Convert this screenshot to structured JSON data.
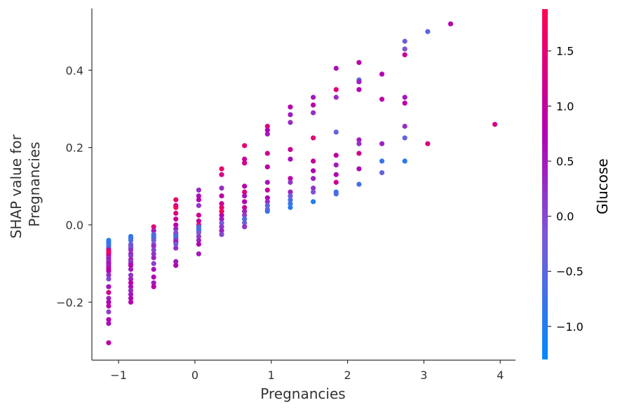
{
  "chart_data": {
    "type": "scatter",
    "title": "",
    "xlabel": "Pregnancies",
    "ylabel": "SHAP value for\nPregnancies",
    "xlim": [
      -1.35,
      4.2
    ],
    "ylim": [
      -0.35,
      0.56
    ],
    "xticks": [
      -1,
      0,
      1,
      2,
      3,
      4
    ],
    "xtick_labels": [
      "−1",
      "0",
      "1",
      "2",
      "3",
      "4"
    ],
    "yticks": [
      -0.2,
      0.0,
      0.2,
      0.4
    ],
    "ytick_labels": [
      "−0.2",
      "0.0",
      "0.2",
      "0.4"
    ],
    "grid": false,
    "colorbar": {
      "label": "Glucose",
      "range": [
        -1.3,
        1.88
      ],
      "ticks": [
        -1.0,
        -0.5,
        0.0,
        0.5,
        1.0,
        1.5
      ],
      "tick_labels": [
        "−1.0",
        "−0.5",
        "0.0",
        "0.5",
        "1.0",
        "1.5"
      ],
      "colors": [
        "#008bfb",
        "#7b59d6",
        "#b300b3",
        "#ff0052"
      ]
    },
    "points": [
      {
        "x": -1.13,
        "y": -0.04,
        "c": -1.0
      },
      {
        "x": -1.13,
        "y": -0.045,
        "c": -0.8
      },
      {
        "x": -1.13,
        "y": -0.05,
        "c": -0.9
      },
      {
        "x": -1.13,
        "y": -0.055,
        "c": -0.6
      },
      {
        "x": -1.13,
        "y": -0.06,
        "c": -0.7
      },
      {
        "x": -1.13,
        "y": -0.065,
        "c": 1.3
      },
      {
        "x": -1.13,
        "y": -0.07,
        "c": 1.6
      },
      {
        "x": -1.13,
        "y": -0.075,
        "c": 1.8
      },
      {
        "x": -1.13,
        "y": -0.08,
        "c": 0.9
      },
      {
        "x": -1.13,
        "y": -0.085,
        "c": 0.3
      },
      {
        "x": -1.13,
        "y": -0.09,
        "c": 0.6
      },
      {
        "x": -1.13,
        "y": -0.095,
        "c": 0.2
      },
      {
        "x": -1.13,
        "y": -0.1,
        "c": 0.8
      },
      {
        "x": -1.13,
        "y": -0.105,
        "c": 0.4
      },
      {
        "x": -1.13,
        "y": -0.11,
        "c": 0.5
      },
      {
        "x": -1.13,
        "y": -0.115,
        "c": 1.0
      },
      {
        "x": -1.13,
        "y": -0.12,
        "c": 0.7
      },
      {
        "x": -1.13,
        "y": -0.13,
        "c": 0.3
      },
      {
        "x": -1.13,
        "y": -0.14,
        "c": 0.0
      },
      {
        "x": -1.13,
        "y": -0.16,
        "c": 0.6
      },
      {
        "x": -1.13,
        "y": -0.175,
        "c": 1.2
      },
      {
        "x": -1.13,
        "y": -0.19,
        "c": 0.4
      },
      {
        "x": -1.13,
        "y": -0.2,
        "c": 0.7
      },
      {
        "x": -1.13,
        "y": -0.21,
        "c": 0.9
      },
      {
        "x": -1.13,
        "y": -0.225,
        "c": 0.1
      },
      {
        "x": -1.13,
        "y": -0.245,
        "c": 0.8
      },
      {
        "x": -1.13,
        "y": -0.255,
        "c": 0.6
      },
      {
        "x": -1.13,
        "y": -0.305,
        "c": 0.9
      },
      {
        "x": -0.84,
        "y": -0.03,
        "c": -0.9
      },
      {
        "x": -0.84,
        "y": -0.035,
        "c": -0.8
      },
      {
        "x": -0.84,
        "y": -0.04,
        "c": -0.6
      },
      {
        "x": -0.84,
        "y": -0.05,
        "c": -0.5
      },
      {
        "x": -0.84,
        "y": -0.055,
        "c": 0.0
      },
      {
        "x": -0.84,
        "y": -0.06,
        "c": -0.3
      },
      {
        "x": -0.84,
        "y": -0.065,
        "c": 0.2
      },
      {
        "x": -0.84,
        "y": -0.075,
        "c": 0.4
      },
      {
        "x": -0.84,
        "y": -0.08,
        "c": 0.1
      },
      {
        "x": -0.84,
        "y": -0.09,
        "c": 0.6
      },
      {
        "x": -0.84,
        "y": -0.095,
        "c": 0.0
      },
      {
        "x": -0.84,
        "y": -0.1,
        "c": 0.3
      },
      {
        "x": -0.84,
        "y": -0.105,
        "c": 0.8
      },
      {
        "x": -0.84,
        "y": -0.115,
        "c": 0.5
      },
      {
        "x": -0.84,
        "y": -0.13,
        "c": 0.2
      },
      {
        "x": -0.84,
        "y": -0.14,
        "c": 0.4
      },
      {
        "x": -0.84,
        "y": -0.15,
        "c": 0.9
      },
      {
        "x": -0.84,
        "y": -0.16,
        "c": 0.6
      },
      {
        "x": -0.84,
        "y": -0.17,
        "c": 0.3
      },
      {
        "x": -0.84,
        "y": -0.18,
        "c": 0.5
      },
      {
        "x": -0.84,
        "y": -0.19,
        "c": 0.7
      },
      {
        "x": -0.84,
        "y": -0.2,
        "c": 0.8
      },
      {
        "x": -0.54,
        "y": -0.005,
        "c": 1.5
      },
      {
        "x": -0.54,
        "y": -0.015,
        "c": 0.5
      },
      {
        "x": -0.54,
        "y": -0.025,
        "c": -0.5
      },
      {
        "x": -0.54,
        "y": -0.03,
        "c": -0.6
      },
      {
        "x": -0.54,
        "y": -0.035,
        "c": -0.7
      },
      {
        "x": -0.54,
        "y": -0.04,
        "c": -0.3
      },
      {
        "x": -0.54,
        "y": -0.05,
        "c": -0.2
      },
      {
        "x": -0.54,
        "y": -0.055,
        "c": 0.3
      },
      {
        "x": -0.54,
        "y": -0.065,
        "c": 0.0
      },
      {
        "x": -0.54,
        "y": -0.075,
        "c": 0.2
      },
      {
        "x": -0.54,
        "y": -0.085,
        "c": 0.4
      },
      {
        "x": -0.54,
        "y": -0.1,
        "c": 0.1
      },
      {
        "x": -0.54,
        "y": -0.115,
        "c": 0.6
      },
      {
        "x": -0.54,
        "y": -0.135,
        "c": 0.8
      },
      {
        "x": -0.54,
        "y": -0.15,
        "c": 0.5
      },
      {
        "x": -0.54,
        "y": -0.16,
        "c": 0.9
      },
      {
        "x": -0.25,
        "y": 0.065,
        "c": 1.6
      },
      {
        "x": -0.25,
        "y": 0.05,
        "c": 1.0
      },
      {
        "x": -0.25,
        "y": 0.045,
        "c": 1.8
      },
      {
        "x": -0.25,
        "y": 0.03,
        "c": 1.4
      },
      {
        "x": -0.25,
        "y": 0.015,
        "c": 1.1
      },
      {
        "x": -0.25,
        "y": 0.0,
        "c": 0.9
      },
      {
        "x": -0.25,
        "y": -0.01,
        "c": 0.4
      },
      {
        "x": -0.25,
        "y": -0.02,
        "c": -0.2
      },
      {
        "x": -0.25,
        "y": -0.025,
        "c": 0.0
      },
      {
        "x": -0.25,
        "y": -0.03,
        "c": -0.8
      },
      {
        "x": -0.25,
        "y": -0.035,
        "c": -0.5
      },
      {
        "x": -0.25,
        "y": -0.04,
        "c": 0.2
      },
      {
        "x": -0.25,
        "y": -0.045,
        "c": 0.6
      },
      {
        "x": -0.25,
        "y": -0.05,
        "c": -0.3
      },
      {
        "x": -0.25,
        "y": -0.06,
        "c": 0.3
      },
      {
        "x": -0.25,
        "y": -0.095,
        "c": 0.5
      },
      {
        "x": -0.25,
        "y": -0.105,
        "c": 0.7
      },
      {
        "x": 0.05,
        "y": 0.09,
        "c": 0.3
      },
      {
        "x": 0.05,
        "y": 0.075,
        "c": 0.6
      },
      {
        "x": 0.05,
        "y": 0.065,
        "c": 0.8
      },
      {
        "x": 0.05,
        "y": 0.05,
        "c": 0.2
      },
      {
        "x": 0.05,
        "y": 0.025,
        "c": 1.2
      },
      {
        "x": 0.05,
        "y": 0.01,
        "c": 0.9
      },
      {
        "x": 0.05,
        "y": 0.0,
        "c": 1.6
      },
      {
        "x": 0.05,
        "y": -0.005,
        "c": -0.7
      },
      {
        "x": 0.05,
        "y": -0.01,
        "c": -0.5
      },
      {
        "x": 0.05,
        "y": -0.015,
        "c": -0.8
      },
      {
        "x": 0.05,
        "y": -0.02,
        "c": -0.2
      },
      {
        "x": 0.05,
        "y": -0.03,
        "c": 0.1
      },
      {
        "x": 0.05,
        "y": -0.04,
        "c": 0.4
      },
      {
        "x": 0.05,
        "y": -0.05,
        "c": 0.7
      },
      {
        "x": 0.05,
        "y": -0.075,
        "c": 0.5
      },
      {
        "x": 0.35,
        "y": 0.145,
        "c": 1.6
      },
      {
        "x": 0.35,
        "y": 0.13,
        "c": 1.3
      },
      {
        "x": 0.35,
        "y": 0.095,
        "c": 0.3
      },
      {
        "x": 0.35,
        "y": 0.075,
        "c": 0.9
      },
      {
        "x": 0.35,
        "y": 0.055,
        "c": 1.1
      },
      {
        "x": 0.35,
        "y": 0.045,
        "c": 1.5
      },
      {
        "x": 0.35,
        "y": 0.035,
        "c": 1.8
      },
      {
        "x": 0.35,
        "y": 0.025,
        "c": 0.8
      },
      {
        "x": 0.35,
        "y": 0.015,
        "c": 0.5
      },
      {
        "x": 0.35,
        "y": 0.005,
        "c": -0.2
      },
      {
        "x": 0.35,
        "y": -0.005,
        "c": 0.2
      },
      {
        "x": 0.35,
        "y": -0.015,
        "c": 0.4
      },
      {
        "x": 0.35,
        "y": -0.025,
        "c": 0.0
      },
      {
        "x": 0.65,
        "y": 0.205,
        "c": 1.5
      },
      {
        "x": 0.65,
        "y": 0.17,
        "c": 1.0
      },
      {
        "x": 0.65,
        "y": 0.16,
        "c": 1.2
      },
      {
        "x": 0.65,
        "y": 0.1,
        "c": 0.9
      },
      {
        "x": 0.65,
        "y": 0.085,
        "c": 1.4
      },
      {
        "x": 0.65,
        "y": 0.075,
        "c": 0.6
      },
      {
        "x": 0.65,
        "y": 0.06,
        "c": 0.8
      },
      {
        "x": 0.65,
        "y": 0.045,
        "c": 1.1
      },
      {
        "x": 0.65,
        "y": 0.035,
        "c": 0.4
      },
      {
        "x": 0.65,
        "y": 0.025,
        "c": 0.1
      },
      {
        "x": 0.65,
        "y": 0.015,
        "c": -0.6
      },
      {
        "x": 0.65,
        "y": 0.005,
        "c": -0.3
      },
      {
        "x": 0.65,
        "y": -0.005,
        "c": 0.2
      },
      {
        "x": 0.95,
        "y": 0.255,
        "c": 1.4
      },
      {
        "x": 0.95,
        "y": 0.245,
        "c": 0.8
      },
      {
        "x": 0.95,
        "y": 0.235,
        "c": 0.5
      },
      {
        "x": 0.95,
        "y": 0.185,
        "c": 1.2
      },
      {
        "x": 0.95,
        "y": 0.15,
        "c": 0.9
      },
      {
        "x": 0.95,
        "y": 0.11,
        "c": 0.6
      },
      {
        "x": 0.95,
        "y": 0.09,
        "c": 1.1
      },
      {
        "x": 0.95,
        "y": 0.07,
        "c": 0.7
      },
      {
        "x": 0.95,
        "y": 0.06,
        "c": 0.3
      },
      {
        "x": 0.95,
        "y": 0.05,
        "c": -0.5
      },
      {
        "x": 0.95,
        "y": 0.04,
        "c": -0.2
      },
      {
        "x": 0.95,
        "y": 0.035,
        "c": -0.7
      },
      {
        "x": 1.25,
        "y": 0.305,
        "c": 0.8
      },
      {
        "x": 1.25,
        "y": 0.285,
        "c": 0.5
      },
      {
        "x": 1.25,
        "y": 0.265,
        "c": 0.3
      },
      {
        "x": 1.25,
        "y": 0.195,
        "c": 1.1
      },
      {
        "x": 1.25,
        "y": 0.17,
        "c": 0.6
      },
      {
        "x": 1.25,
        "y": 0.12,
        "c": 0.9
      },
      {
        "x": 1.25,
        "y": 0.11,
        "c": 0.2
      },
      {
        "x": 1.25,
        "y": 0.085,
        "c": 0.4
      },
      {
        "x": 1.25,
        "y": 0.075,
        "c": -0.3
      },
      {
        "x": 1.25,
        "y": 0.065,
        "c": -0.6
      },
      {
        "x": 1.25,
        "y": 0.055,
        "c": -0.8
      },
      {
        "x": 1.25,
        "y": 0.045,
        "c": -0.9
      },
      {
        "x": 1.55,
        "y": 0.33,
        "c": 0.5
      },
      {
        "x": 1.55,
        "y": 0.31,
        "c": 0.9
      },
      {
        "x": 1.55,
        "y": 0.29,
        "c": 0.3
      },
      {
        "x": 1.55,
        "y": 0.225,
        "c": 1.5
      },
      {
        "x": 1.55,
        "y": 0.165,
        "c": 1.0
      },
      {
        "x": 1.55,
        "y": 0.14,
        "c": 0.7
      },
      {
        "x": 1.55,
        "y": 0.12,
        "c": 0.4
      },
      {
        "x": 1.55,
        "y": 0.095,
        "c": 0.2
      },
      {
        "x": 1.55,
        "y": 0.085,
        "c": -0.1
      },
      {
        "x": 1.55,
        "y": 0.06,
        "c": -1.0
      },
      {
        "x": 1.85,
        "y": 0.405,
        "c": 0.6
      },
      {
        "x": 1.85,
        "y": 0.35,
        "c": 1.4
      },
      {
        "x": 1.85,
        "y": 0.33,
        "c": 0.3
      },
      {
        "x": 1.85,
        "y": 0.24,
        "c": -0.4
      },
      {
        "x": 1.85,
        "y": 0.18,
        "c": 0.9
      },
      {
        "x": 1.85,
        "y": 0.155,
        "c": 0.5
      },
      {
        "x": 1.85,
        "y": 0.13,
        "c": 0.7
      },
      {
        "x": 1.85,
        "y": 0.11,
        "c": 1.1
      },
      {
        "x": 1.85,
        "y": 0.085,
        "c": -0.8
      },
      {
        "x": 1.85,
        "y": 0.08,
        "c": -0.6
      },
      {
        "x": 2.15,
        "y": 0.42,
        "c": 0.9
      },
      {
        "x": 2.15,
        "y": 0.375,
        "c": -0.5
      },
      {
        "x": 2.15,
        "y": 0.37,
        "c": 0.4
      },
      {
        "x": 2.15,
        "y": 0.35,
        "c": 0.8
      },
      {
        "x": 2.15,
        "y": 0.22,
        "c": 0.5
      },
      {
        "x": 2.15,
        "y": 0.21,
        "c": 0.2
      },
      {
        "x": 2.15,
        "y": 0.185,
        "c": 1.2
      },
      {
        "x": 2.15,
        "y": 0.145,
        "c": 0.7
      },
      {
        "x": 2.15,
        "y": 0.105,
        "c": -0.7
      },
      {
        "x": 2.45,
        "y": 0.39,
        "c": 0.8
      },
      {
        "x": 2.45,
        "y": 0.325,
        "c": 0.9
      },
      {
        "x": 2.45,
        "y": 0.21,
        "c": 0.4
      },
      {
        "x": 2.45,
        "y": 0.165,
        "c": -0.8
      },
      {
        "x": 2.45,
        "y": 0.135,
        "c": -0.4
      },
      {
        "x": 2.75,
        "y": 0.475,
        "c": -0.3
      },
      {
        "x": 2.75,
        "y": 0.455,
        "c": -0.1
      },
      {
        "x": 2.75,
        "y": 0.44,
        "c": 1.1
      },
      {
        "x": 2.75,
        "y": 0.33,
        "c": 0.5
      },
      {
        "x": 2.75,
        "y": 0.315,
        "c": 0.9
      },
      {
        "x": 2.75,
        "y": 0.255,
        "c": 0.3
      },
      {
        "x": 2.75,
        "y": 0.225,
        "c": -0.4
      },
      {
        "x": 2.75,
        "y": 0.165,
        "c": -0.9
      },
      {
        "x": 3.05,
        "y": 0.5,
        "c": -0.5
      },
      {
        "x": 3.05,
        "y": 0.21,
        "c": 1.3
      },
      {
        "x": 3.35,
        "y": 0.52,
        "c": 0.8
      },
      {
        "x": 3.93,
        "y": 0.26,
        "c": 1.3
      }
    ]
  }
}
